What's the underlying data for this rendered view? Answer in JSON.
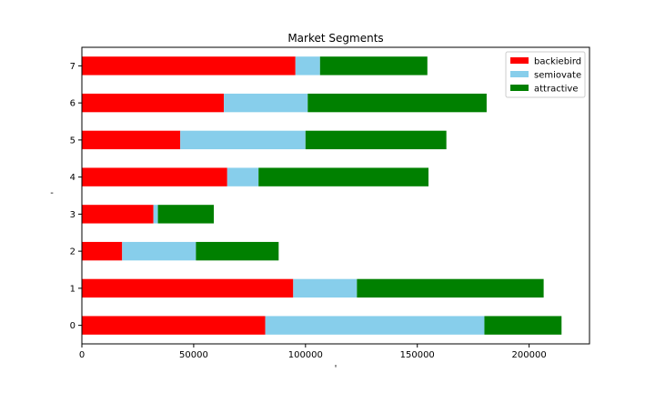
{
  "chart_data": {
    "type": "bar",
    "orientation": "horizontal",
    "stacked": true,
    "title": "Market Segments",
    "xlabel": "'",
    "ylabel": "-",
    "categories": [
      "0",
      "1",
      "2",
      "3",
      "4",
      "5",
      "6",
      "7"
    ],
    "xlim": [
      0,
      227000
    ],
    "xticks": [
      0,
      50000,
      100000,
      150000,
      200000
    ],
    "xtick_labels": [
      "0",
      "50000",
      "100000",
      "150000",
      "200000"
    ],
    "grid": false,
    "legend_position": "top-right",
    "series": [
      {
        "name": "backiebird",
        "color": "#ff0000",
        "values": [
          82000,
          94500,
          18000,
          32000,
          65000,
          44000,
          63500,
          95500
        ]
      },
      {
        "name": "semiovate",
        "color": "#87ceeb",
        "values": [
          98000,
          28500,
          33000,
          2000,
          14000,
          56000,
          37500,
          11000
        ]
      },
      {
        "name": "attractive",
        "color": "#008000",
        "values": [
          34500,
          83500,
          37000,
          25000,
          76000,
          63000,
          80000,
          48000
        ]
      }
    ]
  }
}
